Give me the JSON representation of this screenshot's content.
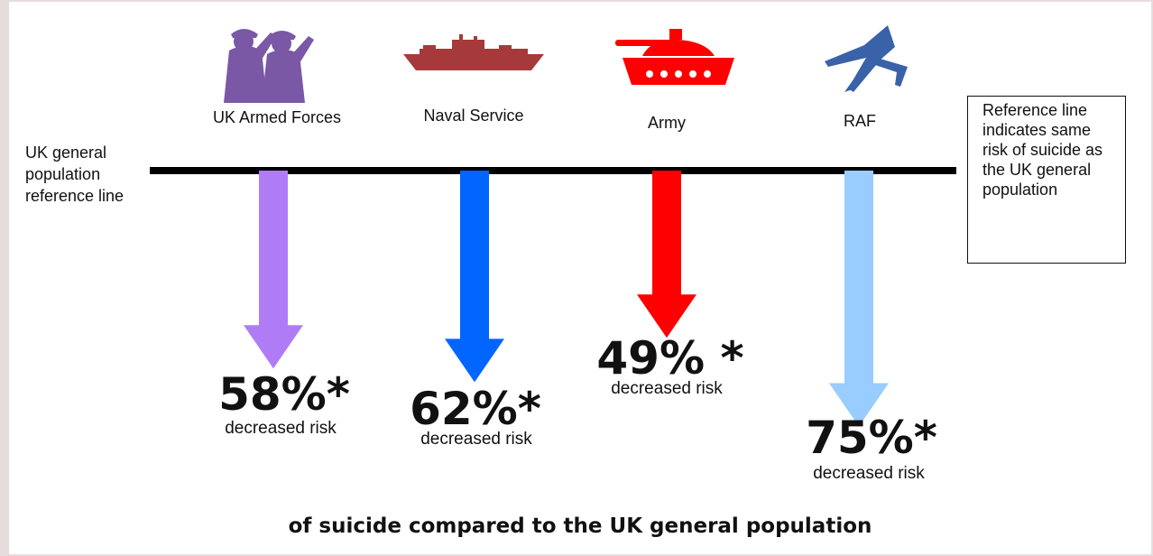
{
  "chart_data": {
    "type": "bar",
    "categories": [
      "UK Armed Forces",
      "Naval Service",
      "Army",
      "RAF"
    ],
    "values": [
      58,
      62,
      49,
      75
    ],
    "value_labels": [
      "58%*",
      "62%*",
      "49% *",
      "75%*"
    ],
    "value_sublabel": "decreased risk",
    "colors": [
      "#b07cf6",
      "#0066ff",
      "#ff0000",
      "#99ccff"
    ],
    "icons": [
      "saluting-soldiers-icon",
      "warship-icon",
      "tank-icon",
      "fighter-jet-icon"
    ],
    "icon_colors": [
      "#7a58a6",
      "#a63a3a",
      "#ff0000",
      "#3a62a8"
    ],
    "reference_label": "UK general population reference line",
    "reference_note": "Reference line indicates same risk of suicide as the UK general population",
    "caption": "of suicide compared to the UK general population"
  }
}
